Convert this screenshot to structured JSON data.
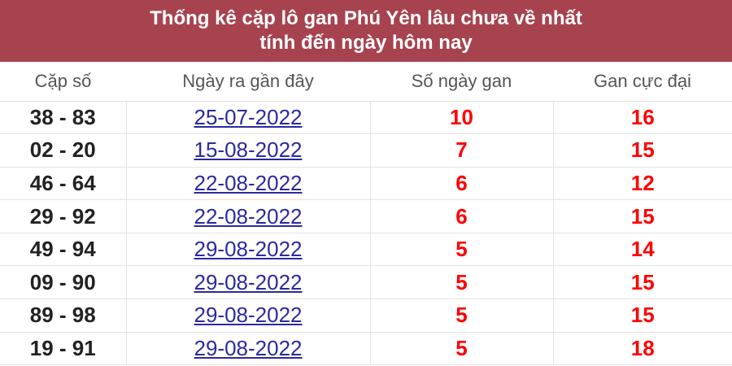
{
  "title": {
    "line1": "Thống kê cặp lô gan Phú Yên lâu chưa về nhất",
    "line2": "tính đến ngày hôm nay"
  },
  "colors": {
    "header_bg": "#a7434f",
    "link": "#2b2a9e",
    "value": "#ff0000"
  },
  "columns": [
    "Cặp số",
    "Ngày ra gần đây",
    "Số ngày gan",
    "Gan cực đại"
  ],
  "rows": [
    {
      "pair": "38 - 83",
      "date": "25-07-2022",
      "days": "10",
      "max": "16"
    },
    {
      "pair": "02 - 20",
      "date": "15-08-2022",
      "days": "7",
      "max": "15"
    },
    {
      "pair": "46 - 64",
      "date": "22-08-2022",
      "days": "6",
      "max": "12"
    },
    {
      "pair": "29 - 92",
      "date": "22-08-2022",
      "days": "6",
      "max": "15"
    },
    {
      "pair": "49 - 94",
      "date": "29-08-2022",
      "days": "5",
      "max": "14"
    },
    {
      "pair": "09 - 90",
      "date": "29-08-2022",
      "days": "5",
      "max": "15"
    },
    {
      "pair": "89 - 98",
      "date": "29-08-2022",
      "days": "5",
      "max": "15"
    },
    {
      "pair": "19 - 91",
      "date": "29-08-2022",
      "days": "5",
      "max": "18"
    }
  ]
}
